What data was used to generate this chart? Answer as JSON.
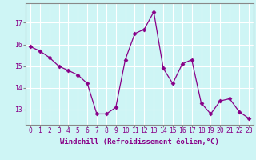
{
  "x": [
    0,
    1,
    2,
    3,
    4,
    5,
    6,
    7,
    8,
    9,
    10,
    11,
    12,
    13,
    14,
    15,
    16,
    17,
    18,
    19,
    20,
    21,
    22,
    23
  ],
  "y": [
    15.9,
    15.7,
    15.4,
    15.0,
    14.8,
    14.6,
    14.2,
    12.8,
    12.8,
    13.1,
    15.3,
    16.5,
    16.7,
    17.5,
    14.9,
    14.2,
    15.1,
    15.3,
    13.3,
    12.8,
    13.4,
    13.5,
    12.9,
    12.6
  ],
  "line_color": "#880088",
  "marker": "D",
  "marker_size": 2.5,
  "bg_color": "#cef5f5",
  "grid_color": "#ffffff",
  "xlabel": "Windchill (Refroidissement éolien,°C)",
  "xlabel_fontsize": 6.5,
  "tick_fontsize": 5.8,
  "ylim": [
    12.3,
    17.9
  ],
  "yticks": [
    13,
    14,
    15,
    16,
    17
  ],
  "xticks": [
    0,
    1,
    2,
    3,
    4,
    5,
    6,
    7,
    8,
    9,
    10,
    11,
    12,
    13,
    14,
    15,
    16,
    17,
    18,
    19,
    20,
    21,
    22,
    23
  ],
  "spine_color": "#888888",
  "label_color": "#880088"
}
